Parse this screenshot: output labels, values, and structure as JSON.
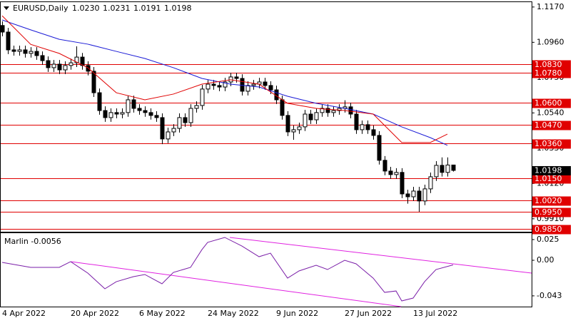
{
  "chart_data": [
    {
      "type": "candlestick",
      "title": "EURUSD,Daily",
      "ohlc_labels": [
        "1.0230",
        "1.0231",
        "1.0191",
        "1.0198"
      ],
      "categories": [
        "4 Apr 2022",
        null,
        null,
        null,
        null,
        null,
        null,
        null,
        null,
        null,
        null,
        null,
        "20 Apr 2022",
        null,
        null,
        null,
        null,
        null,
        null,
        null,
        null,
        null,
        null,
        null,
        "6 May 2022",
        null,
        null,
        null,
        null,
        null,
        null,
        null,
        null,
        null,
        null,
        null,
        "24 May 2022",
        null,
        null,
        null,
        null,
        null,
        null,
        null,
        null,
        null,
        null,
        null,
        "9 Jun 2022",
        null,
        null,
        null,
        null,
        null,
        null,
        null,
        null,
        null,
        null,
        null,
        "27 Jun 2022",
        null,
        null,
        null,
        null,
        null,
        null,
        null,
        null,
        null,
        null,
        null,
        "13 Jul 2022",
        null,
        null,
        null,
        null,
        null,
        null,
        null
      ],
      "open": [
        1.106,
        1.1021,
        1.0915,
        1.0906,
        1.0915,
        1.0894,
        1.0906,
        1.0881,
        1.0851,
        1.0809,
        1.083,
        1.0796,
        1.0822,
        1.0838,
        1.0872,
        1.0822,
        1.0788,
        1.066,
        1.0554,
        1.0512,
        1.0542,
        1.0533,
        1.0542,
        1.0618,
        1.0567,
        1.0554,
        1.0542,
        1.0525,
        1.0512,
        1.0385,
        1.0427,
        1.0448,
        1.0512,
        1.0482,
        1.0567,
        1.0584,
        1.0682,
        1.0711,
        1.0703,
        1.0694,
        1.0724,
        1.0754,
        1.0745,
        1.0669,
        1.0703,
        1.0711,
        1.0724,
        1.0703,
        1.0677,
        1.0618,
        1.0525,
        1.0427,
        1.044,
        1.0457,
        1.0533,
        1.0499,
        1.0542,
        1.0567,
        1.0542,
        1.0554,
        1.0567,
        1.0576,
        1.0533,
        1.044,
        1.047,
        1.044,
        1.0406,
        1.0258,
        1.0194,
        1.0173,
        1.0186,
        1.0058,
        1.0041,
        1.0075,
        1.0016,
        1.0088,
        1.016,
        1.0228,
        1.0186,
        1.023
      ],
      "high": [
        1.1085,
        1.1046,
        1.094,
        1.094,
        1.094,
        1.0931,
        1.0931,
        1.0906,
        1.0876,
        1.0855,
        1.0855,
        1.0847,
        1.0863,
        1.0936,
        1.0897,
        1.0847,
        1.0813,
        1.0685,
        1.0579,
        1.0567,
        1.0567,
        1.0567,
        1.0643,
        1.0643,
        1.0592,
        1.0579,
        1.0567,
        1.055,
        1.0537,
        1.0452,
        1.0473,
        1.0537,
        1.0537,
        1.0592,
        1.0609,
        1.0707,
        1.0736,
        1.0736,
        1.0728,
        1.0749,
        1.0779,
        1.0779,
        1.077,
        1.0728,
        1.0736,
        1.0749,
        1.0749,
        1.0728,
        1.0702,
        1.0643,
        1.055,
        1.0465,
        1.0482,
        1.0558,
        1.0558,
        1.0567,
        1.0592,
        1.0592,
        1.0579,
        1.0592,
        1.0615,
        1.0601,
        1.0558,
        1.0495,
        1.0495,
        1.0465,
        1.0431,
        1.0283,
        1.0219,
        1.0211,
        1.0211,
        1.0083,
        1.01,
        1.01,
        1.0113,
        1.0185,
        1.0253,
        1.0275,
        1.0275,
        1.0231
      ],
      "low": [
        1.0996,
        1.089,
        1.0881,
        1.0881,
        1.0869,
        1.0869,
        1.0856,
        1.0826,
        1.0784,
        1.0784,
        1.0771,
        1.0771,
        1.0797,
        1.0813,
        1.0797,
        1.0763,
        1.0635,
        1.0529,
        1.0487,
        1.0487,
        1.0508,
        1.0508,
        1.0517,
        1.0542,
        1.0529,
        1.0517,
        1.05,
        1.0487,
        1.0354,
        1.036,
        1.0402,
        1.0423,
        1.0457,
        1.0457,
        1.0542,
        1.0559,
        1.0657,
        1.0678,
        1.0669,
        1.0669,
        1.0699,
        1.072,
        1.0644,
        1.0644,
        1.0678,
        1.0686,
        1.0678,
        1.0652,
        1.0593,
        1.05,
        1.0402,
        1.038,
        1.0415,
        1.0432,
        1.0474,
        1.0474,
        1.0517,
        1.0517,
        1.0517,
        1.0529,
        1.0542,
        1.0508,
        1.0415,
        1.0415,
        1.0415,
        1.0381,
        1.0233,
        1.0169,
        1.0148,
        1.0148,
        1.0033,
        1.0,
        1.0016,
        0.9952,
        0.9991,
        1.0063,
        1.0135,
        1.0161,
        1.0161,
        1.0191
      ],
      "close": [
        1.1021,
        1.0915,
        1.0906,
        1.0915,
        1.0894,
        1.0906,
        1.0881,
        1.0851,
        1.0809,
        1.083,
        1.0796,
        1.0822,
        1.0838,
        1.0872,
        1.0822,
        1.0788,
        1.066,
        1.0554,
        1.0512,
        1.0542,
        1.0533,
        1.0542,
        1.0618,
        1.0567,
        1.0554,
        1.0542,
        1.0525,
        1.0512,
        1.0385,
        1.0427,
        1.0448,
        1.0512,
        1.0482,
        1.0567,
        1.0584,
        1.0682,
        1.0711,
        1.0703,
        1.0694,
        1.0724,
        1.0754,
        1.0745,
        1.0669,
        1.0703,
        1.0711,
        1.0724,
        1.0703,
        1.0677,
        1.0618,
        1.0525,
        1.0427,
        1.044,
        1.0457,
        1.0533,
        1.0499,
        1.0542,
        1.0567,
        1.0542,
        1.0554,
        1.0567,
        1.0576,
        1.0533,
        1.044,
        1.047,
        1.044,
        1.0406,
        1.0258,
        1.0194,
        1.0173,
        1.0186,
        1.0058,
        1.0041,
        1.0075,
        1.0016,
        1.0088,
        1.016,
        1.0228,
        1.0186,
        1.023,
        1.0198
      ],
      "overlays": [
        {
          "color": "#1a1ad6",
          "x": [
            0,
            5,
            10,
            15,
            20,
            25,
            30,
            35,
            40,
            45,
            50,
            55,
            60,
            65,
            70,
            75,
            78
          ],
          "values": [
            1.1093,
            1.1034,
            1.0978,
            1.0949,
            1.0906,
            1.0864,
            1.0809,
            1.0745,
            1.0711,
            1.0694,
            1.0639,
            1.0597,
            1.0567,
            1.0533,
            1.0457,
            1.0393,
            1.0347
          ]
        },
        {
          "color": "#e00000",
          "x": [
            0,
            5,
            10,
            15,
            20,
            25,
            30,
            35,
            40,
            45,
            50,
            55,
            60,
            65,
            70,
            75,
            78
          ],
          "values": [
            1.1118,
            1.0948,
            1.0894,
            1.0809,
            1.066,
            1.0618,
            1.0652,
            1.0711,
            1.0737,
            1.0711,
            1.0597,
            1.0567,
            1.0554,
            1.0533,
            1.0364,
            1.0364,
            1.0414
          ]
        }
      ],
      "levels": [
        {
          "value": 1.083,
          "label": "1.0830"
        },
        {
          "value": 1.078,
          "label": "1.0780"
        },
        {
          "value": 1.06,
          "label": "1.0600"
        },
        {
          "value": 1.047,
          "label": "1.0470"
        },
        {
          "value": 1.036,
          "label": "1.0360"
        },
        {
          "value": 1.015,
          "label": "1.0150"
        },
        {
          "value": 1.002,
          "label": "1.0020"
        },
        {
          "value": 0.995,
          "label": "0.9950"
        },
        {
          "value": 0.985,
          "label": "0.9850"
        }
      ],
      "level_color": "#e00000",
      "bull_color": "#ffffff",
      "bear_color": "#000000",
      "ylim": [
        0.9833,
        1.1199
      ],
      "yticks": [
        {
          "value": 1.117,
          "label": "1.1170"
        },
        {
          "value": 1.096,
          "label": "1.0960"
        },
        {
          "value": 1.075,
          "label": "1.0750"
        },
        {
          "value": 1.054,
          "label": "1.0540"
        },
        {
          "value": 1.033,
          "label": "1.0330"
        },
        {
          "value": 1.012,
          "label": "1.0120"
        },
        {
          "value": 0.991,
          "label": "0.9910"
        }
      ]
    },
    {
      "type": "line",
      "title": "Marlin -0.0056",
      "color": "#7a1ea8",
      "x": [
        0,
        5,
        10,
        12,
        15,
        18,
        20,
        23,
        25,
        28,
        30,
        33,
        35,
        36,
        39,
        42,
        45,
        47,
        50,
        52,
        55,
        57,
        60,
        62,
        65,
        67,
        69,
        70,
        72,
        74,
        76,
        79
      ],
      "values": [
        -0.0026,
        -0.0086,
        -0.0086,
        -0.0017,
        -0.0155,
        -0.0345,
        -0.0259,
        -0.0198,
        -0.0172,
        -0.0284,
        -0.0147,
        -0.0086,
        0.0129,
        0.0216,
        0.0276,
        0.0172,
        0.0043,
        0.0086,
        -0.0216,
        -0.0129,
        -0.006,
        -0.0112,
        0,
        -0.0043,
        -0.0216,
        -0.0388,
        -0.0371,
        -0.0491,
        -0.0457,
        -0.0259,
        -0.0112,
        -0.0056
      ],
      "ylim": [
        -0.056,
        0.0319
      ],
      "yticks": [
        0.025,
        {
          "value": 0,
          "label": "0.00"
        },
        -0.043
      ]
    }
  ]
}
